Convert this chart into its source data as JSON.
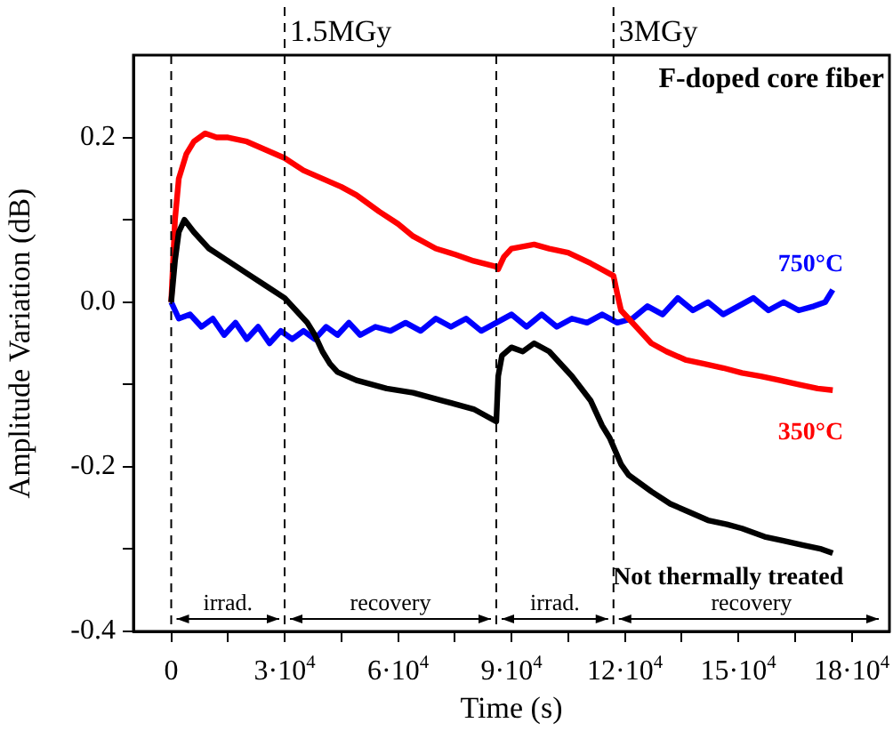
{
  "chart_data": {
    "type": "line",
    "xlabel": "Time (s)",
    "ylabel": "Amplitude Variation (dB)",
    "xlim": [
      -10000,
      190000
    ],
    "ylim": [
      -0.4,
      0.3
    ],
    "xticks": [
      {
        "value": 0,
        "label": "0"
      },
      {
        "value": 15000,
        "label": null
      },
      {
        "value": 30000,
        "label": "3·10$^{4}$"
      },
      {
        "value": 45000,
        "label": null
      },
      {
        "value": 60000,
        "label": "6·10$^{4}$"
      },
      {
        "value": 75000,
        "label": null
      },
      {
        "value": 90000,
        "label": "9·10$^{4}$"
      },
      {
        "value": 105000,
        "label": null
      },
      {
        "value": 120000,
        "label": "12·10$^{4}$"
      },
      {
        "value": 135000,
        "label": null
      },
      {
        "value": 150000,
        "label": "15·10$^{4}$"
      },
      {
        "value": 165000,
        "label": null
      },
      {
        "value": 180000,
        "label": "18·10$^{4}$"
      }
    ],
    "yticks": [
      -0.4,
      {
        "value": -0.3,
        "label": null
      },
      -0.2,
      {
        "value": -0.1,
        "label": null
      },
      {
        "value": 0,
        "label": "0.0"
      },
      {
        "value": 0.1,
        "label": null
      },
      0.2
    ],
    "grid": false,
    "legend": false,
    "marker": "none",
    "line_style": "solid",
    "series": [
      {
        "name": "Not thermally treated",
        "color": "#000000",
        "x": [
          0,
          1000,
          2000,
          3500,
          6000,
          10000,
          15000,
          20000,
          25000,
          30000,
          33000,
          36000,
          38000,
          40000,
          42000,
          44000,
          49000,
          57000,
          64000,
          72000,
          80000,
          86000,
          86500,
          87500,
          90000,
          93000,
          96000,
          100000,
          102000,
          106000,
          111000,
          114000,
          116000,
          119000,
          121000,
          124000,
          127000,
          132000,
          137000,
          142000,
          147000,
          151000,
          157000,
          162000,
          167000,
          172000,
          175000
        ],
        "values": [
          0,
          0.05,
          0.085,
          0.1,
          0.085,
          0.065,
          0.05,
          0.035,
          0.02,
          0.005,
          -0.01,
          -0.025,
          -0.04,
          -0.06,
          -0.075,
          -0.085,
          -0.095,
          -0.105,
          -0.11,
          -0.12,
          -0.13,
          -0.145,
          -0.09,
          -0.065,
          -0.055,
          -0.06,
          -0.05,
          -0.06,
          -0.07,
          -0.09,
          -0.12,
          -0.15,
          -0.165,
          -0.197,
          -0.21,
          -0.22,
          -0.23,
          -0.245,
          -0.255,
          -0.265,
          -0.27,
          -0.275,
          -0.285,
          -0.29,
          -0.295,
          -0.3,
          -0.305
        ]
      },
      {
        "name": "350°C",
        "color": "#ff0000",
        "x": [
          0,
          1000,
          2000,
          4000,
          6000,
          9000,
          12000,
          15000,
          20000,
          25000,
          30000,
          35000,
          40000,
          45000,
          49000,
          55000,
          60000,
          64000,
          70000,
          75000,
          80000,
          86000,
          86500,
          88000,
          90000,
          96000,
          100000,
          105000,
          111000,
          117000,
          118000,
          119000,
          121000,
          124000,
          127000,
          131000,
          136000,
          141000,
          146000,
          151000,
          156000,
          161000,
          166000,
          171000,
          175000
        ],
        "values": [
          0,
          0.1,
          0.15,
          0.18,
          0.195,
          0.205,
          0.2,
          0.2,
          0.195,
          0.185,
          0.175,
          0.16,
          0.15,
          0.14,
          0.13,
          0.11,
          0.095,
          0.08,
          0.065,
          0.058,
          0.05,
          0.043,
          0.04,
          0.055,
          0.065,
          0.07,
          0.065,
          0.06,
          0.047,
          0.032,
          0.01,
          -0.01,
          -0.02,
          -0.035,
          -0.05,
          -0.06,
          -0.07,
          -0.075,
          -0.08,
          -0.086,
          -0.09,
          -0.095,
          -0.1,
          -0.105,
          -0.107
        ]
      },
      {
        "name": "750°C",
        "color": "#0000ff",
        "x": [
          0,
          2000,
          5000,
          8000,
          11000,
          14000,
          17000,
          20000,
          23000,
          26000,
          29000,
          32000,
          35000,
          38000,
          41000,
          44000,
          47000,
          50000,
          54000,
          58000,
          62000,
          66000,
          70000,
          74000,
          78000,
          82000,
          86000,
          90000,
          94000,
          98000,
          102000,
          106000,
          110000,
          114000,
          118000,
          122000,
          126000,
          130000,
          134000,
          138000,
          142000,
          146000,
          150000,
          154000,
          158000,
          162000,
          166000,
          170000,
          173000,
          175000
        ],
        "values": [
          0,
          -0.02,
          -0.015,
          -0.03,
          -0.02,
          -0.04,
          -0.025,
          -0.045,
          -0.03,
          -0.05,
          -0.035,
          -0.045,
          -0.035,
          -0.045,
          -0.03,
          -0.04,
          -0.025,
          -0.04,
          -0.03,
          -0.035,
          -0.025,
          -0.035,
          -0.02,
          -0.03,
          -0.02,
          -0.035,
          -0.025,
          -0.015,
          -0.03,
          -0.015,
          -0.03,
          -0.02,
          -0.025,
          -0.015,
          -0.025,
          -0.02,
          -0.005,
          -0.015,
          0.005,
          -0.01,
          0,
          -0.015,
          -0.005,
          0.005,
          -0.01,
          0,
          -0.01,
          -0.005,
          0,
          0.015
        ]
      }
    ],
    "ref_lines": [
      {
        "axis": "x",
        "value": 0,
        "label": null,
        "line_style": "dashed",
        "color": "#000000"
      },
      {
        "axis": "x",
        "value": 30000,
        "label": "1.5MGy",
        "line_style": "dashed",
        "color": "#000000"
      },
      {
        "axis": "x",
        "value": 86000,
        "label": null,
        "line_style": "dashed",
        "color": "#000000"
      },
      {
        "axis": "x",
        "value": 117000,
        "label": "3MGy",
        "line_style": "dashed",
        "color": "#000000"
      }
    ],
    "annotations": [
      "F-doped core fiber",
      "irrad.",
      "recovery",
      "irrad.",
      "recovery"
    ]
  }
}
